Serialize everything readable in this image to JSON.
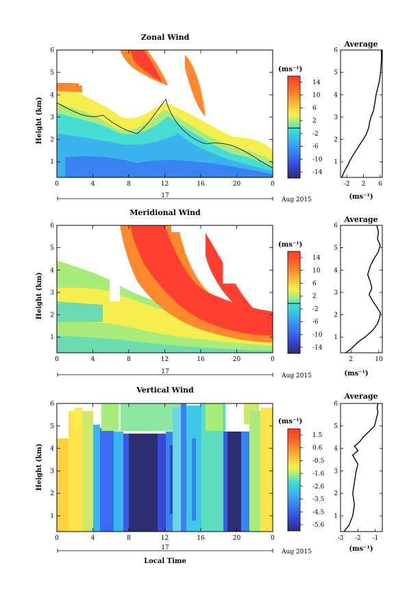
{
  "figure": {
    "date_label": "Aug 2015",
    "day_label": "17",
    "time_axis_label": "Local Time",
    "height_axis_label": "Height (km)",
    "unit_label": "(ms⁻¹)",
    "average_title": "Average",
    "time_ticks": [
      "0",
      "4",
      "8",
      "12",
      "16",
      "20",
      "0"
    ],
    "height_ticks": [
      "1",
      "2",
      "3",
      "4",
      "5",
      "6"
    ]
  },
  "chart_data": [
    {
      "type": "heatmap",
      "title": "Zonal Wind",
      "xlabel": "",
      "ylabel": "Height (km)",
      "xlim": [
        0,
        24
      ],
      "ylim": [
        0.3,
        6
      ],
      "colorbar": {
        "label": "(ms⁻¹)",
        "ticks": [
          "14",
          "10",
          "6",
          "2",
          "-2",
          "-6",
          "-10",
          "-14"
        ],
        "range": [
          -16,
          16
        ]
      },
      "profile": {
        "title": "Average",
        "xlabel": "(ms⁻¹)",
        "xticks": [
          "-2",
          "2",
          "6"
        ],
        "xlim": [
          -3.5,
          6.5
        ],
        "heights": [
          0.3,
          0.6,
          0.9,
          1.0,
          1.2,
          1.5,
          1.8,
          2.0,
          2.2,
          2.5,
          2.8,
          3.0,
          3.3,
          3.6,
          4.0,
          4.3,
          4.6,
          5.0,
          5.3,
          5.6,
          6.0
        ],
        "values": [
          -3.2,
          -2.5,
          -1.6,
          -1.4,
          -0.8,
          0.2,
          1.2,
          1.9,
          2.6,
          3.2,
          3.5,
          3.8,
          4.4,
          4.7,
          5.0,
          5.4,
          5.8,
          6.1,
          6.2,
          6.3,
          6.3
        ]
      }
    },
    {
      "type": "heatmap",
      "title": "Meridional Wind",
      "xlabel": "",
      "ylabel": "Height (km)",
      "xlim": [
        0,
        24
      ],
      "ylim": [
        0.3,
        6
      ],
      "colorbar": {
        "label": "(ms⁻¹)",
        "ticks": [
          "14",
          "10",
          "6",
          "2",
          "-2",
          "-6",
          "-10",
          "-14"
        ],
        "range": [
          -16,
          16
        ]
      },
      "profile": {
        "title": "Average",
        "xlabel": "(ms⁻¹)",
        "xticks": [
          "2",
          "10"
        ],
        "xlim": [
          -1,
          11
        ],
        "heights": [
          0.3,
          0.5,
          0.8,
          1.0,
          1.3,
          1.6,
          1.9,
          2.1,
          2.3,
          2.6,
          2.9,
          3.2,
          3.5,
          3.8,
          4.2,
          4.5,
          4.8,
          5.1,
          5.4,
          5.7,
          6.0
        ],
        "values": [
          0.5,
          2.2,
          4.2,
          6.0,
          8.2,
          9.6,
          10.3,
          10.4,
          9.6,
          8.3,
          7.2,
          8.0,
          7.5,
          6.8,
          7.6,
          8.6,
          9.8,
          10.4,
          9.6,
          9.9,
          9.4
        ]
      }
    },
    {
      "type": "heatmap",
      "title": "Vertical Wind",
      "xlabel": "Local Time",
      "ylabel": "Height (km)",
      "xlim": [
        0,
        24
      ],
      "ylim": [
        0.3,
        6
      ],
      "colorbar": {
        "label": "(ms⁻¹)",
        "ticks": [
          "1.5",
          "0.6",
          "-0.5",
          "-1.6",
          "-2.6",
          "-3.5",
          "-4.5",
          "-5.6"
        ],
        "range": [
          -6.2,
          2.0
        ]
      },
      "profile": {
        "title": "Average",
        "xlabel": "(ms⁻¹)",
        "xticks": [
          "-3",
          "-2",
          "-1"
        ],
        "xlim": [
          -3,
          -0.6
        ],
        "heights": [
          0.3,
          0.6,
          1.0,
          1.5,
          2.0,
          2.5,
          3.0,
          3.3,
          3.7,
          3.9,
          4.1,
          4.3,
          4.5,
          4.8,
          5.0,
          5.3,
          5.6,
          5.8,
          6.0
        ],
        "values": [
          -2.8,
          -2.5,
          -2.3,
          -2.2,
          -2.3,
          -2.2,
          -2.1,
          -2.0,
          -2.3,
          -2.0,
          -2.2,
          -1.9,
          -1.7,
          -1.3,
          -1.05,
          -0.95,
          -0.85,
          -0.9,
          -0.85
        ]
      }
    }
  ]
}
